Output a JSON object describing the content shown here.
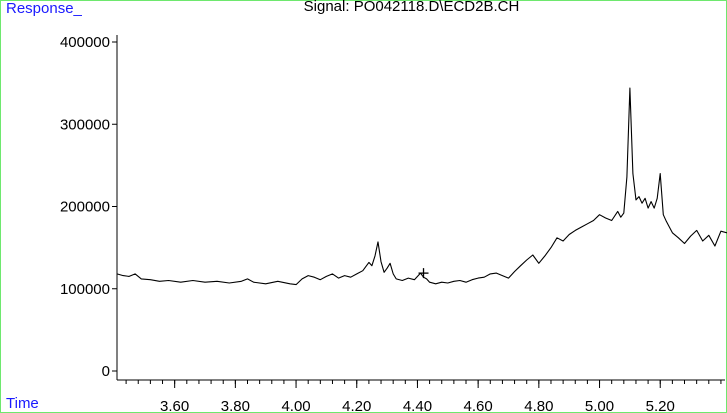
{
  "chart_data": {
    "type": "line",
    "title": "Signal: PO042118.D\\ECD2B.CH",
    "ylabel": "Response_",
    "xlabel": "Time",
    "xlim": [
      3.41,
      5.42
    ],
    "ylim": [
      0,
      400000
    ],
    "y_ticks": [
      0,
      100000,
      200000,
      300000,
      400000
    ],
    "y_tick_labels": [
      "0",
      "100000",
      "200000",
      "300000",
      "400000"
    ],
    "x_ticks": [
      3.6,
      3.8,
      4.0,
      4.2,
      4.4,
      4.6,
      4.8,
      5.0,
      5.2
    ],
    "x_tick_labels": [
      "3.60",
      "3.80",
      "4.00",
      "4.20",
      "4.40",
      "4.60",
      "4.80",
      "5.00",
      "5.20"
    ],
    "marker": {
      "x": 4.42,
      "y": 119000,
      "symbol": "+"
    },
    "grid": false,
    "series": [
      {
        "color": "#000000",
        "x": [
          3.41,
          3.43,
          3.45,
          3.47,
          3.49,
          3.52,
          3.55,
          3.58,
          3.62,
          3.66,
          3.7,
          3.74,
          3.78,
          3.82,
          3.84,
          3.86,
          3.9,
          3.94,
          3.98,
          4.0,
          4.02,
          4.04,
          4.06,
          4.08,
          4.1,
          4.12,
          4.14,
          4.16,
          4.18,
          4.2,
          4.22,
          4.24,
          4.25,
          4.26,
          4.27,
          4.28,
          4.29,
          4.3,
          4.31,
          4.32,
          4.33,
          4.35,
          4.37,
          4.39,
          4.41,
          4.42,
          4.43,
          4.44,
          4.46,
          4.48,
          4.5,
          4.52,
          4.54,
          4.56,
          4.58,
          4.6,
          4.62,
          4.64,
          4.66,
          4.68,
          4.7,
          4.72,
          4.74,
          4.76,
          4.78,
          4.8,
          4.82,
          4.84,
          4.86,
          4.88,
          4.9,
          4.92,
          4.94,
          4.96,
          4.98,
          5.0,
          5.02,
          5.04,
          5.06,
          5.07,
          5.08,
          5.09,
          5.1,
          5.11,
          5.12,
          5.13,
          5.14,
          5.15,
          5.16,
          5.17,
          5.18,
          5.19,
          5.2,
          5.21,
          5.22,
          5.24,
          5.26,
          5.28,
          5.3,
          5.32,
          5.34,
          5.36,
          5.38,
          5.4,
          5.42
        ],
        "y": [
          118000,
          116000,
          115000,
          118000,
          112000,
          111000,
          109000,
          110000,
          108000,
          110000,
          108000,
          109000,
          107000,
          109000,
          112000,
          108000,
          106000,
          109000,
          106000,
          105000,
          112000,
          116000,
          114000,
          111000,
          115000,
          118000,
          113000,
          116000,
          114000,
          118000,
          122000,
          132000,
          128000,
          140000,
          157000,
          133000,
          120000,
          125000,
          131000,
          118000,
          112000,
          110000,
          113000,
          111000,
          119000,
          114000,
          112000,
          108000,
          106000,
          108000,
          107000,
          109000,
          110000,
          108000,
          111000,
          113000,
          114000,
          118000,
          119000,
          116000,
          113000,
          121000,
          128000,
          135000,
          141000,
          131000,
          140000,
          150000,
          162000,
          158000,
          166000,
          171000,
          175000,
          179000,
          183000,
          190000,
          186000,
          183000,
          194000,
          187000,
          192000,
          236000,
          344000,
          240000,
          208000,
          212000,
          204000,
          210000,
          198000,
          206000,
          198000,
          210000,
          240000,
          190000,
          182000,
          168000,
          162000,
          155000,
          164000,
          171000,
          158000,
          165000,
          152000,
          170000,
          168000
        ]
      }
    ]
  }
}
